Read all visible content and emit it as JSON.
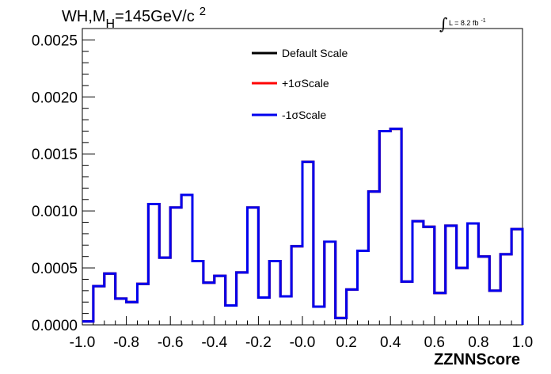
{
  "chart_data": {
    "type": "line",
    "step": true,
    "title": {
      "main": "WH,M",
      "sub": "H",
      "rest": "=145GeV/c",
      "sup": "2"
    },
    "luminosity": {
      "symbol": "∫",
      "text": "L = 8.2 fb",
      "sup": "-1"
    },
    "xlabel": "ZZNNScore",
    "ylabel": "",
    "xlim": [
      -1.0,
      1.0
    ],
    "ylim": [
      0.0,
      0.0026
    ],
    "x_ticks": [
      "-1.0",
      "-0.8",
      "-0.6",
      "-0.4",
      "-0.2",
      "-0.0",
      "0.2",
      "0.4",
      "0.6",
      "0.8",
      "1.0"
    ],
    "y_ticks": [
      "0.0000",
      "0.0005",
      "0.0010",
      "0.0015",
      "0.0020",
      "0.0025"
    ],
    "legend_position": "top-center",
    "bin_edges": [
      -1.0,
      -0.95,
      -0.9,
      -0.85,
      -0.8,
      -0.75,
      -0.7,
      -0.65,
      -0.6,
      -0.55,
      -0.5,
      -0.45,
      -0.4,
      -0.35,
      -0.3,
      -0.25,
      -0.2,
      -0.15,
      -0.1,
      -0.05,
      0.0,
      0.05,
      0.1,
      0.15,
      0.2,
      0.25,
      0.3,
      0.35,
      0.4,
      0.45,
      0.5,
      0.55,
      0.6,
      0.65,
      0.7,
      0.75,
      0.8,
      0.85,
      0.9,
      0.95,
      1.0
    ],
    "series": [
      {
        "name": "Default Scale",
        "color": "#000000",
        "values": [
          3e-05,
          0.00034,
          0.00045,
          0.00023,
          0.0002,
          0.00036,
          0.00106,
          0.00059,
          0.00103,
          0.00114,
          0.00056,
          0.00037,
          0.00043,
          0.00017,
          0.00046,
          0.00103,
          0.00024,
          0.00056,
          0.00025,
          0.00069,
          0.00143,
          0.00016,
          0.00073,
          6e-05,
          0.00031,
          0.00065,
          0.00117,
          0.0017,
          0.00172,
          0.00038,
          0.00091,
          0.00086,
          0.00028,
          0.00087,
          0.0005,
          0.00089,
          0.0006,
          0.0003,
          0.00062,
          0.00084,
          0.0
        ]
      },
      {
        "name": "+1σScale",
        "color": "#ff0000",
        "values": [
          3e-05,
          0.00034,
          0.00045,
          0.00023,
          0.0002,
          0.00036,
          0.00106,
          0.00059,
          0.00103,
          0.00114,
          0.00056,
          0.00037,
          0.00043,
          0.00017,
          0.00046,
          0.00103,
          0.00024,
          0.00056,
          0.00025,
          0.00069,
          0.00143,
          0.00016,
          0.00073,
          6e-05,
          0.00031,
          0.00065,
          0.00117,
          0.0017,
          0.00172,
          0.00038,
          0.00091,
          0.00086,
          0.00028,
          0.00087,
          0.0005,
          0.00089,
          0.0006,
          0.0003,
          0.00062,
          0.00084,
          0.0
        ]
      },
      {
        "name": "-1σScale",
        "color": "#0000ee",
        "values": [
          3e-05,
          0.00034,
          0.00045,
          0.00023,
          0.0002,
          0.00036,
          0.00106,
          0.00059,
          0.00103,
          0.00114,
          0.00056,
          0.00037,
          0.00043,
          0.00017,
          0.00046,
          0.00103,
          0.00024,
          0.00056,
          0.00025,
          0.00069,
          0.00143,
          0.00016,
          0.00073,
          6e-05,
          0.00031,
          0.00065,
          0.00117,
          0.0017,
          0.00172,
          0.00038,
          0.00091,
          0.00086,
          0.00028,
          0.00087,
          0.0005,
          0.00089,
          0.0006,
          0.0003,
          0.00062,
          0.00084,
          0.0
        ]
      }
    ]
  }
}
